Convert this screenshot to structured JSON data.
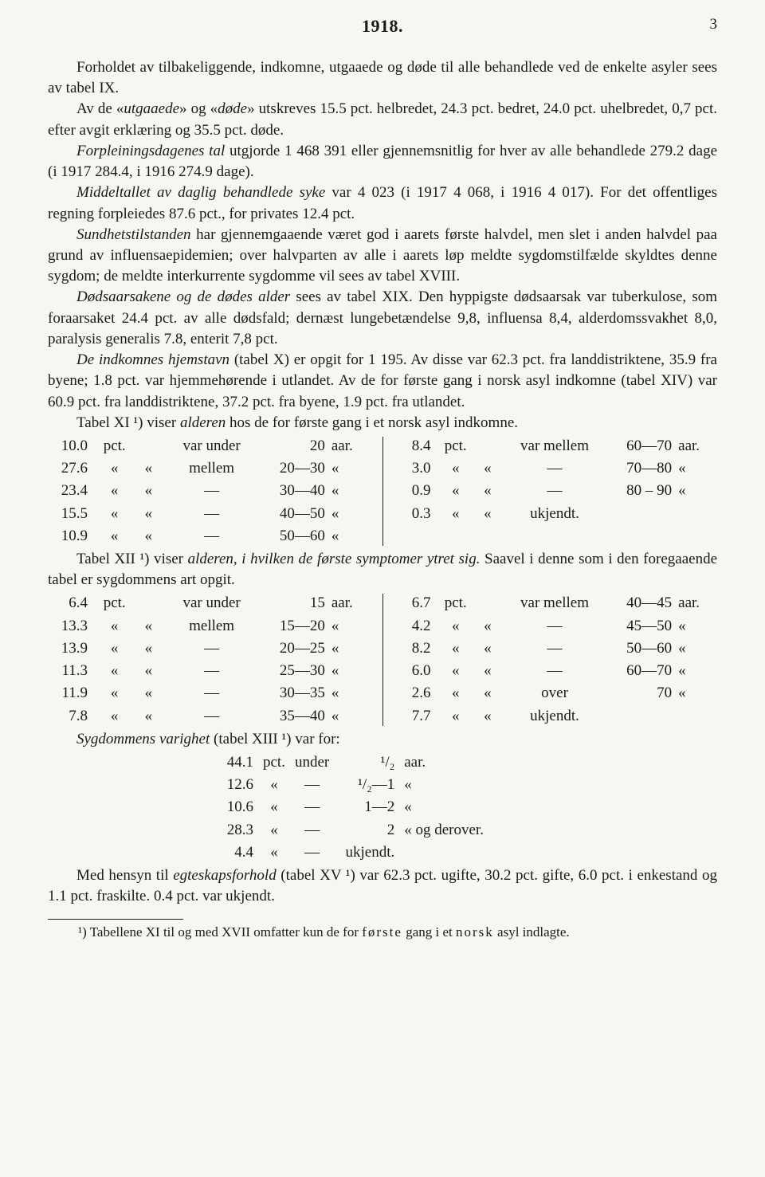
{
  "header": {
    "year": "1918.",
    "pagenum": "3"
  },
  "p1": "Forholdet av tilbakeliggende, indkomne, utgaaede og døde til alle behandlede ved de enkelte asyler sees av tabel IX.",
  "p2_a": "Av de «",
  "p2_it1": "utgaaede",
  "p2_b": "» og «",
  "p2_it2": "døde",
  "p2_c": "» utskreves 15.5 pct. helbredet, 24.3 pct. bedret, 24.0 pct. uhelbredet, 0,7 pct. efter avgit erklæring og 35.5 pct. døde.",
  "p3_it": "Forpleiningsdagenes tal",
  "p3_rest": " utgjorde 1 468 391 eller gjennemsnitlig for hver av alle behandlede 279.2 dage (i 1917 284.4, i 1916 274.9 dage).",
  "p4_it": "Middeltallet av daglig behandlede syke",
  "p4_rest": " var 4 023 (i 1917 4 068, i 1916 4 017). For det offentliges regning forpleiedes 87.6 pct., for privates 12.4 pct.",
  "p5_it": "Sundhetstilstanden",
  "p5_rest": " har gjennemgaaende været god i aarets første halvdel, men slet i anden halvdel paa grund av influensaepidemien; over halvparten av alle i aarets løp meldte sygdomstilfælde skyldtes denne sygdom; de meldte interkurrente sygdomme vil sees av tabel XVIII.",
  "p6_it": "Dødsaarsakene og de dødes alder",
  "p6_rest": " sees av tabel XIX. Den hyppigste dødsaarsak var tuberkulose, som foraarsaket 24.4 pct. av alle dødsfald; dernæst lungebetændelse 9,8, influensa 8,4, alderdomssvakhet 8,0, paralysis generalis 7.8, enterit 7,8 pct.",
  "p7_it": "De indkomnes hjemstavn",
  "p7_rest": " (tabel X) er opgit for 1 195. Av disse var 62.3 pct. fra landdistriktene, 35.9 fra byene; 1.8 pct. var hjemmehørende i utlandet. Av de for første gang i norsk asyl indkomne (tabel XIV) var 60.9 pct. fra landdistriktene, 37.2 pct. fra byene, 1.9 pct. fra utlandet.",
  "p8_a": "Tabel XI ¹) viser ",
  "p8_it": "alderen",
  "p8_b": " hos de for første gang i et norsk asyl indkomne.",
  "ageA_left": [
    {
      "n": "10.0",
      "u": "pct.",
      "w": "var under",
      "r": "20",
      "rl": "aar."
    },
    {
      "n": "27.6",
      "u": "«",
      "q1": "«",
      "w": "mellem",
      "r": "20—30",
      "rl": "«"
    },
    {
      "n": "23.4",
      "u": "«",
      "q1": "«",
      "w": "—",
      "r": "30—40",
      "rl": "«"
    },
    {
      "n": "15.5",
      "u": "«",
      "q1": "«",
      "w": "—",
      "r": "40—50",
      "rl": "«"
    },
    {
      "n": "10.9",
      "u": "«",
      "q1": "«",
      "w": "—",
      "r": "50—60",
      "rl": "«"
    }
  ],
  "ageA_right": [
    {
      "n": "8.4",
      "u": "pct.",
      "w": "var mellem",
      "r": "60—70",
      "rl": "aar."
    },
    {
      "n": "3.0",
      "u": "«",
      "q1": "«",
      "w": "—",
      "r": "70—80",
      "rl": "«"
    },
    {
      "n": "0.9",
      "u": "«",
      "q1": "«",
      "w": "—",
      "r": "80 – 90",
      "rl": "«"
    },
    {
      "n": "0.3",
      "u": "«",
      "q1": "«",
      "w": "ukjendt.",
      "r": "",
      "rl": ""
    }
  ],
  "p9_a": "Tabel XII ¹) viser ",
  "p9_it": "alderen, i hvilken de første symptomer ytret sig.",
  "p9_b": " Saavel i denne som i den foregaaende tabel er sygdommens art opgit.",
  "ageB_left": [
    {
      "n": "6.4",
      "u": "pct.",
      "w": "var under",
      "r": "15",
      "rl": "aar."
    },
    {
      "n": "13.3",
      "u": "«",
      "q1": "«",
      "w": "mellem",
      "r": "15—20",
      "rl": "«"
    },
    {
      "n": "13.9",
      "u": "«",
      "q1": "«",
      "w": "—",
      "r": "20—25",
      "rl": "«"
    },
    {
      "n": "11.3",
      "u": "«",
      "q1": "«",
      "w": "—",
      "r": "25—30",
      "rl": "«"
    },
    {
      "n": "11.9",
      "u": "«",
      "q1": "«",
      "w": "—",
      "r": "30—35",
      "rl": "«"
    },
    {
      "n": "7.8",
      "u": "«",
      "q1": "«",
      "w": "—",
      "r": "35—40",
      "rl": "«"
    }
  ],
  "ageB_right": [
    {
      "n": "6.7",
      "u": "pct.",
      "w": "var mellem",
      "r": "40—45",
      "rl": "aar."
    },
    {
      "n": "4.2",
      "u": "«",
      "q1": "«",
      "w": "—",
      "r": "45—50",
      "rl": "«"
    },
    {
      "n": "8.2",
      "u": "«",
      "q1": "«",
      "w": "—",
      "r": "50—60",
      "rl": "«"
    },
    {
      "n": "6.0",
      "u": "«",
      "q1": "«",
      "w": "—",
      "r": "60—70",
      "rl": "«"
    },
    {
      "n": "2.6",
      "u": "«",
      "q1": "«",
      "w": "over",
      "r": "70",
      "rl": "«"
    },
    {
      "n": "7.7",
      "u": "«",
      "q1": "«",
      "w": "ukjendt.",
      "r": "",
      "rl": ""
    }
  ],
  "p10_it": "Sygdommens varighet",
  "p10_rest": " (tabel XIII ¹) var for:",
  "dur": [
    {
      "n": "44.1",
      "u": "pct.",
      "w": "under",
      "r": "¹/₂",
      "rl": "aar."
    },
    {
      "n": "12.6",
      "u": "«",
      "w": "—",
      "r": "¹/₂—1",
      "rl": "«"
    },
    {
      "n": "10.6",
      "u": "«",
      "w": "—",
      "r": "1—2",
      "rl": "«"
    },
    {
      "n": "28.3",
      "u": "«",
      "w": "—",
      "r": "2",
      "rl": "«  og derover."
    },
    {
      "n": "4.4",
      "u": "«",
      "w": "—",
      "r": "ukjendt.",
      "rl": ""
    }
  ],
  "p11_a": "Med hensyn til ",
  "p11_it": "egteskapsforhold",
  "p11_b": " (tabel XV ¹) var 62.3 pct. ugifte, 30.2 pct. gifte, 6.0 pct. i enkestand og 1.1 pct. fraskilte. 0.4 pct. var ukjendt.",
  "foot_a": "¹) Tabellene XI til og med XVII omfatter kun de for ",
  "foot_s1": "første",
  "foot_mid": " gang i et ",
  "foot_s2": "norsk",
  "foot_b": " asyl indlagte."
}
